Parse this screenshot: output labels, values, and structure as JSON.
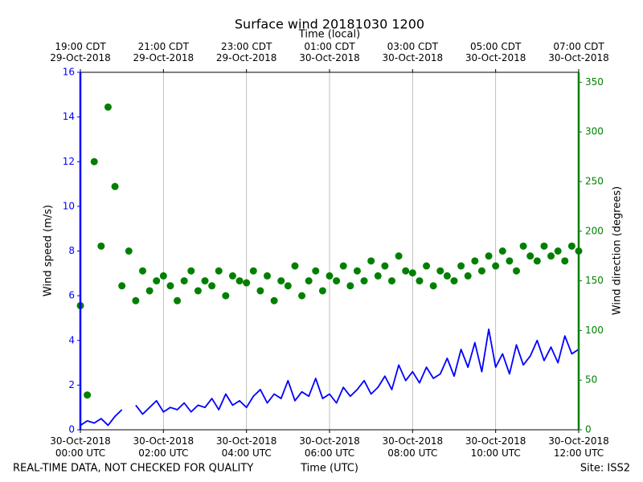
{
  "chart_data": {
    "type": "combo",
    "title": "Surface wind 20181030 1200",
    "x2label": "Time (local)",
    "xlabel": "Time (UTC)",
    "ylabel": "Wind speed (m/s)",
    "y2label": "Wind direction (degrees)",
    "note": "REAL-TIME DATA, NOT CHECKED FOR QUALITY",
    "site": "Site: ISS2",
    "xlim": [
      "2018-10-30 00:00",
      "2018-10-30 12:00"
    ],
    "xticks": [
      {
        "value": "2018-10-30 00:00",
        "label": [
          "30-Oct-2018",
          "00:00 UTC"
        ]
      },
      {
        "value": "2018-10-30 02:00",
        "label": [
          "30-Oct-2018",
          "02:00 UTC"
        ]
      },
      {
        "value": "2018-10-30 04:00",
        "label": [
          "30-Oct-2018",
          "04:00 UTC"
        ]
      },
      {
        "value": "2018-10-30 06:00",
        "label": [
          "30-Oct-2018",
          "06:00 UTC"
        ]
      },
      {
        "value": "2018-10-30 08:00",
        "label": [
          "30-Oct-2018",
          "08:00 UTC"
        ]
      },
      {
        "value": "2018-10-30 10:00",
        "label": [
          "30-Oct-2018",
          "10:00 UTC"
        ]
      },
      {
        "value": "2018-10-30 12:00",
        "label": [
          "30-Oct-2018",
          "12:00 UTC"
        ]
      }
    ],
    "x2ticks": [
      {
        "value": "2018-10-30 00:00",
        "label": [
          "19:00 CDT",
          "29-Oct-2018"
        ]
      },
      {
        "value": "2018-10-30 02:00",
        "label": [
          "21:00 CDT",
          "29-Oct-2018"
        ]
      },
      {
        "value": "2018-10-30 04:00",
        "label": [
          "23:00 CDT",
          "29-Oct-2018"
        ]
      },
      {
        "value": "2018-10-30 06:00",
        "label": [
          "01:00 CDT",
          "30-Oct-2018"
        ]
      },
      {
        "value": "2018-10-30 08:00",
        "label": [
          "03:00 CDT",
          "30-Oct-2018"
        ]
      },
      {
        "value": "2018-10-30 10:00",
        "label": [
          "05:00 CDT",
          "30-Oct-2018"
        ]
      },
      {
        "value": "2018-10-30 12:00",
        "label": [
          "07:00 CDT",
          "30-Oct-2018"
        ]
      }
    ],
    "xgrid": true,
    "ylim": [
      0,
      16
    ],
    "yticks": [
      0,
      2,
      4,
      6,
      8,
      10,
      12,
      14,
      16
    ],
    "y2lim": [
      0,
      360
    ],
    "y2ticks": [
      0,
      50,
      100,
      150,
      200,
      250,
      300,
      350
    ],
    "x": [
      "2018-10-30 00:00",
      "2018-10-30 00:10",
      "2018-10-30 00:20",
      "2018-10-30 00:30",
      "2018-10-30 00:40",
      "2018-10-30 00:50",
      "2018-10-30 01:00",
      "2018-10-30 01:10",
      "2018-10-30 01:20",
      "2018-10-30 01:30",
      "2018-10-30 01:40",
      "2018-10-30 01:50",
      "2018-10-30 02:00",
      "2018-10-30 02:10",
      "2018-10-30 02:20",
      "2018-10-30 02:30",
      "2018-10-30 02:40",
      "2018-10-30 02:50",
      "2018-10-30 03:00",
      "2018-10-30 03:10",
      "2018-10-30 03:20",
      "2018-10-30 03:30",
      "2018-10-30 03:40",
      "2018-10-30 03:50",
      "2018-10-30 04:00",
      "2018-10-30 04:10",
      "2018-10-30 04:20",
      "2018-10-30 04:30",
      "2018-10-30 04:40",
      "2018-10-30 04:50",
      "2018-10-30 05:00",
      "2018-10-30 05:10",
      "2018-10-30 05:20",
      "2018-10-30 05:30",
      "2018-10-30 05:40",
      "2018-10-30 05:50",
      "2018-10-30 06:00",
      "2018-10-30 06:10",
      "2018-10-30 06:20",
      "2018-10-30 06:30",
      "2018-10-30 06:40",
      "2018-10-30 06:50",
      "2018-10-30 07:00",
      "2018-10-30 07:10",
      "2018-10-30 07:20",
      "2018-10-30 07:30",
      "2018-10-30 07:40",
      "2018-10-30 07:50",
      "2018-10-30 08:00",
      "2018-10-30 08:10",
      "2018-10-30 08:20",
      "2018-10-30 08:30",
      "2018-10-30 08:40",
      "2018-10-30 08:50",
      "2018-10-30 09:00",
      "2018-10-30 09:10",
      "2018-10-30 09:20",
      "2018-10-30 09:30",
      "2018-10-30 09:40",
      "2018-10-30 09:50",
      "2018-10-30 10:00",
      "2018-10-30 10:10",
      "2018-10-30 10:20",
      "2018-10-30 10:30",
      "2018-10-30 10:40",
      "2018-10-30 10:50",
      "2018-10-30 11:00",
      "2018-10-30 11:10",
      "2018-10-30 11:20",
      "2018-10-30 11:30",
      "2018-10-30 11:40",
      "2018-10-30 11:50",
      "2018-10-30 12:00"
    ],
    "series": [
      {
        "name": "Wind speed",
        "type": "line",
        "color": "#0000ff",
        "values": [
          0.2,
          0.4,
          0.3,
          0.5,
          0.2,
          0.6,
          0.9,
          null,
          1.1,
          0.7,
          1.0,
          1.3,
          0.8,
          1.0,
          0.9,
          1.2,
          0.8,
          1.1,
          1.0,
          1.4,
          0.9,
          1.6,
          1.1,
          1.3,
          1.0,
          1.5,
          1.8,
          1.2,
          1.6,
          1.4,
          2.2,
          1.3,
          1.7,
          1.5,
          2.3,
          1.4,
          1.6,
          1.2,
          1.9,
          1.5,
          1.8,
          2.2,
          1.6,
          1.9,
          2.4,
          1.8,
          2.9,
          2.2,
          2.6,
          2.1,
          2.8,
          2.3,
          2.5,
          3.2,
          2.4,
          3.6,
          2.8,
          3.9,
          2.6,
          4.5,
          2.8,
          3.4,
          2.5,
          3.8,
          2.9,
          3.3,
          4.0,
          3.1,
          3.7,
          3.0,
          4.2,
          3.4,
          3.6
        ]
      },
      {
        "name": "Wind direction",
        "type": "scatter",
        "axis": "y2",
        "color": "#008000",
        "values": [
          125,
          35,
          270,
          185,
          325,
          245,
          145,
          180,
          130,
          160,
          140,
          150,
          155,
          145,
          130,
          150,
          160,
          140,
          150,
          145,
          160,
          135,
          155,
          150,
          148,
          160,
          140,
          155,
          130,
          150,
          145,
          165,
          135,
          150,
          160,
          140,
          155,
          150,
          165,
          145,
          160,
          150,
          170,
          155,
          165,
          150,
          175,
          160,
          158,
          150,
          165,
          145,
          160,
          155,
          150,
          165,
          155,
          170,
          160,
          175,
          165,
          180,
          170,
          160,
          185,
          175,
          170,
          185,
          175,
          180,
          170,
          185,
          180
        ]
      }
    ]
  }
}
